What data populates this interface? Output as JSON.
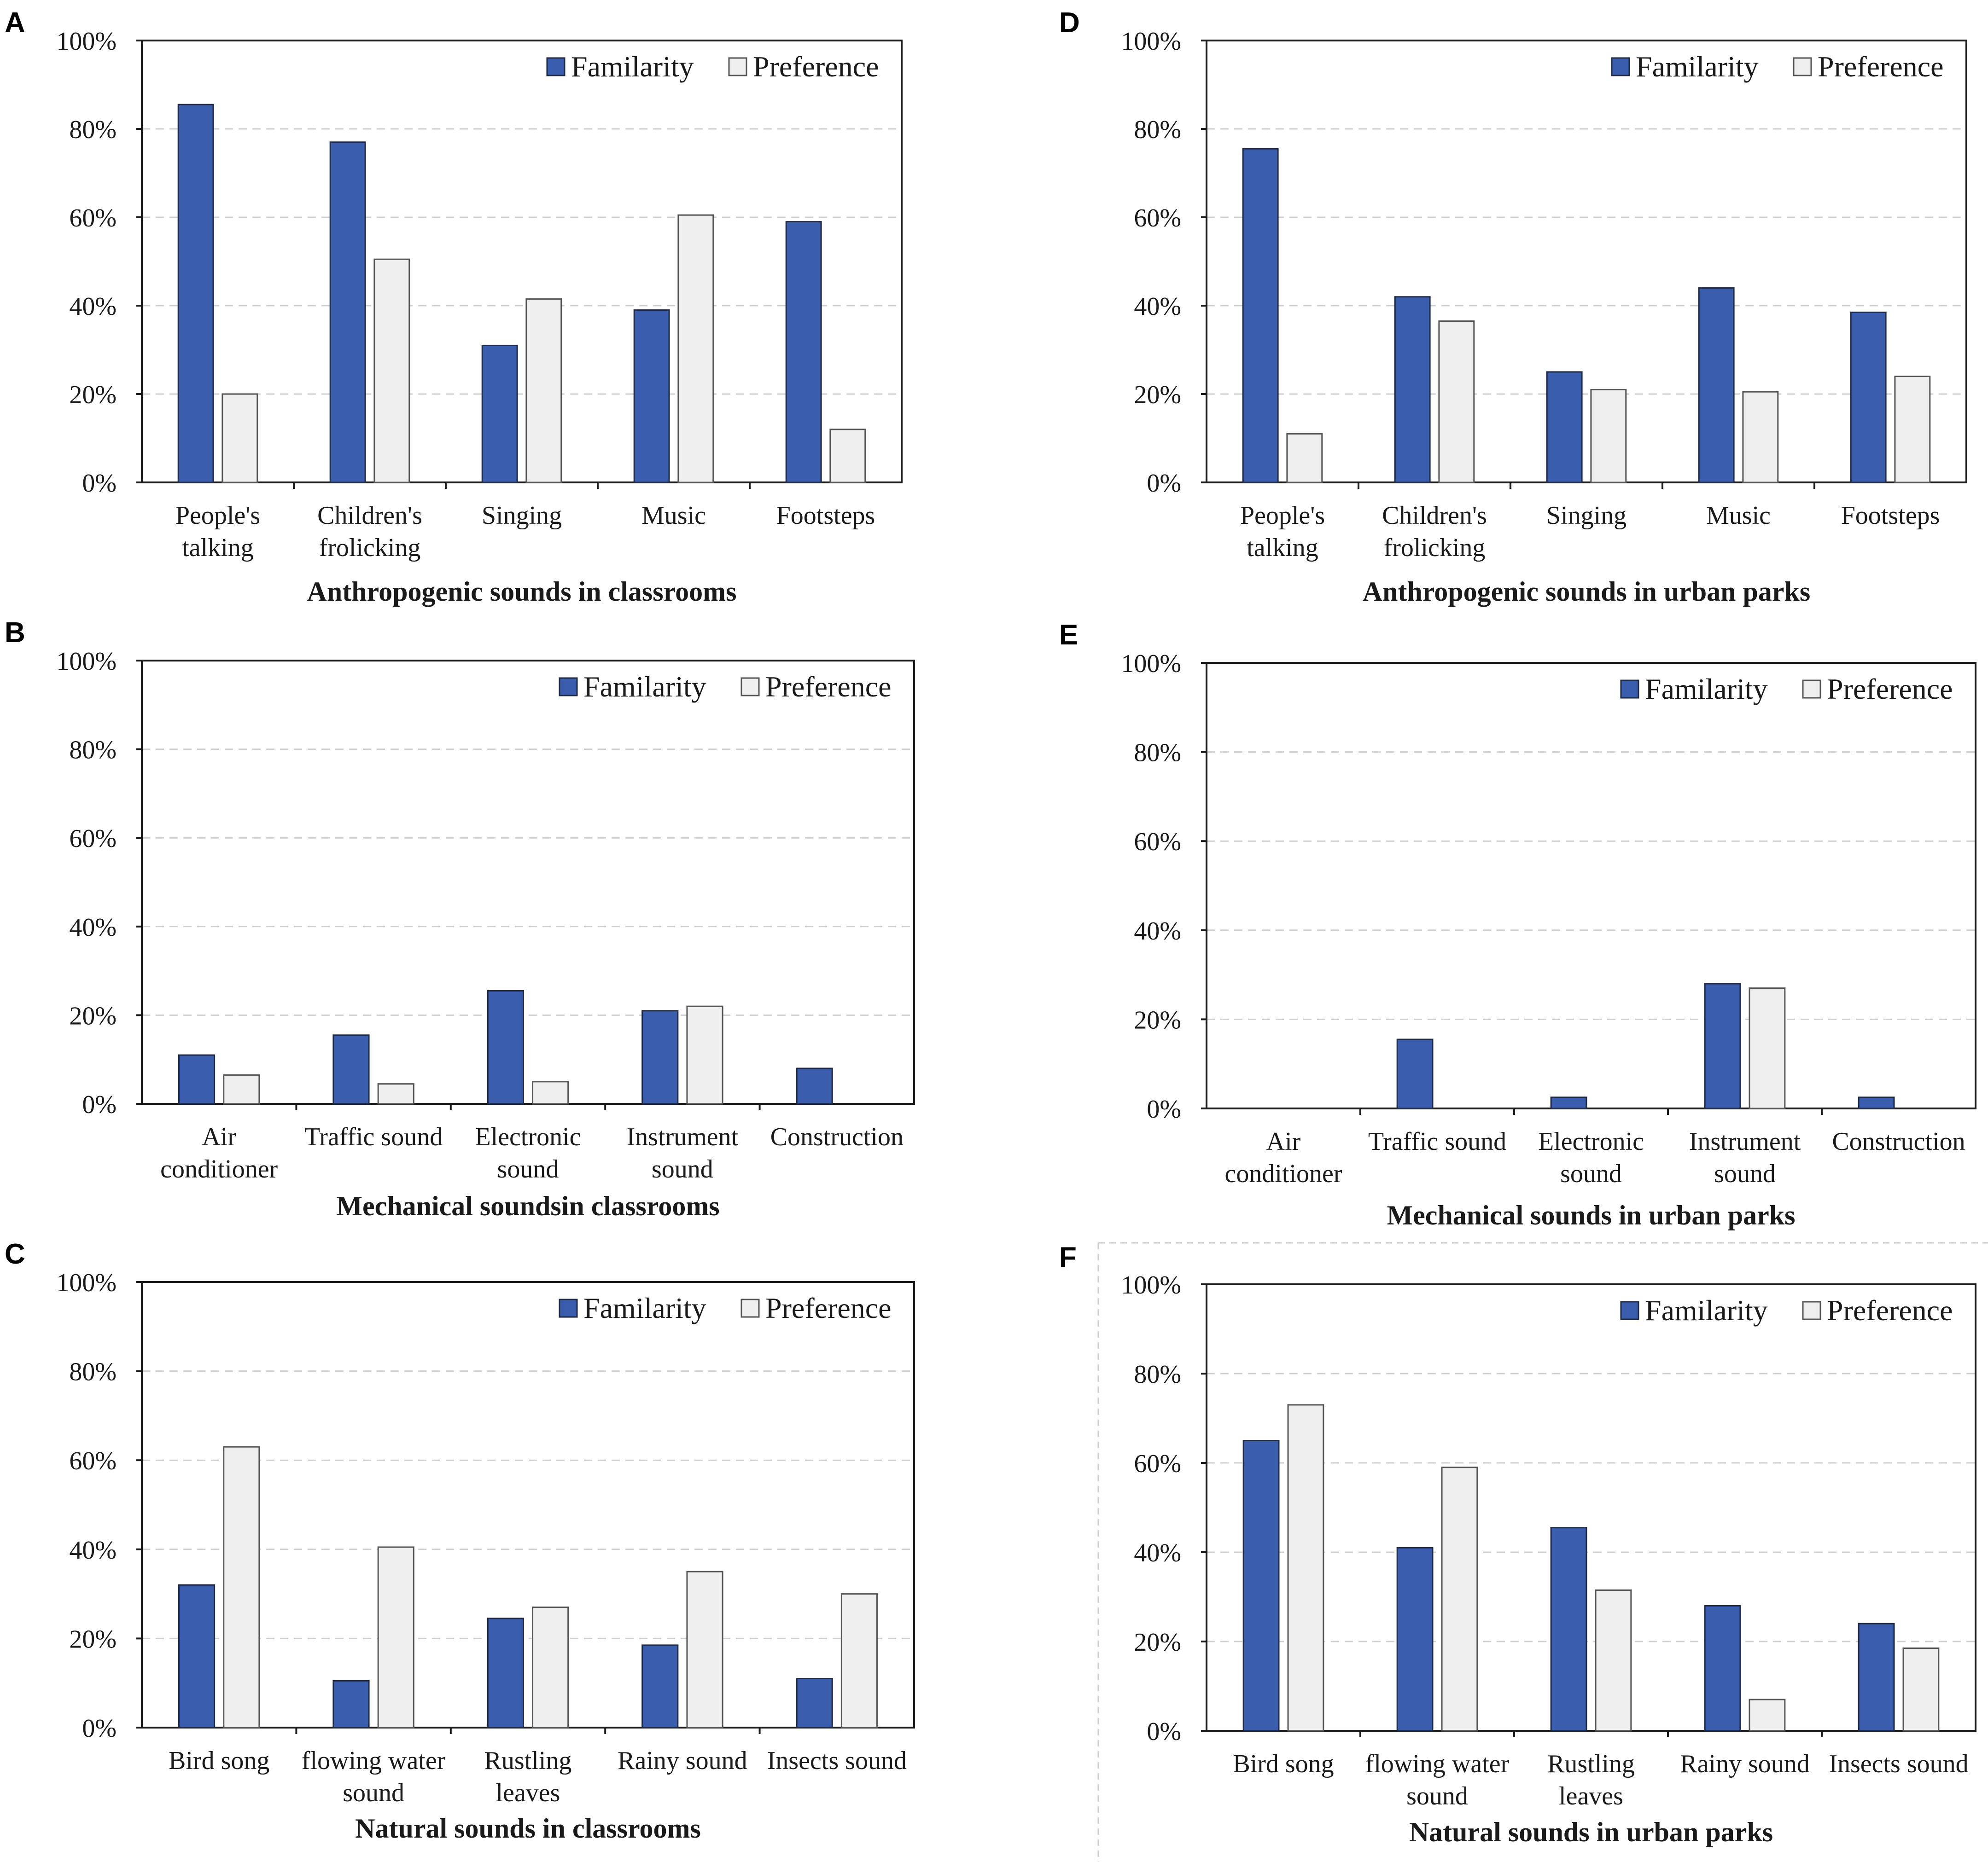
{
  "figure": {
    "legend": {
      "familiarity": "Familarity",
      "preference": "Preference"
    },
    "colors": {
      "familiarity": "#3a5dad",
      "preference": "#efefef",
      "axis": "#1a1a1a",
      "grid": "#cfcfcf"
    },
    "y_ticks": [
      "0%",
      "20%",
      "40%",
      "60%",
      "80%",
      "100%"
    ]
  },
  "chart_data": [
    {
      "panel": "A",
      "type": "bar",
      "title": "Anthropogenic sounds in classrooms",
      "categories": [
        [
          "People's",
          "talking"
        ],
        [
          "Children's",
          "frolicking"
        ],
        [
          "Singing"
        ],
        [
          "Music"
        ],
        [
          "Footsteps"
        ]
      ],
      "series": [
        {
          "name": "Familarity",
          "values": [
            85.5,
            77,
            31,
            39,
            59
          ]
        },
        {
          "name": "Preference",
          "values": [
            20,
            50.5,
            41.5,
            60.5,
            12
          ]
        }
      ],
      "ylim": [
        0,
        100
      ],
      "legend": "top-right"
    },
    {
      "panel": "B",
      "type": "bar",
      "title": "Mechanical soundsin classrooms",
      "categories": [
        [
          "Air",
          "conditioner"
        ],
        [
          "Traffic sound"
        ],
        [
          "Electronic",
          "sound"
        ],
        [
          "Instrument",
          "sound"
        ],
        [
          "Construction"
        ]
      ],
      "series": [
        {
          "name": "Familarity",
          "values": [
            11,
            15.5,
            25.5,
            21,
            8
          ]
        },
        {
          "name": "Preference",
          "values": [
            6.5,
            4.5,
            5,
            22,
            0
          ]
        }
      ],
      "ylim": [
        0,
        100
      ],
      "legend": "top-right"
    },
    {
      "panel": "C",
      "type": "bar",
      "title": "Natural sounds in classrooms",
      "categories": [
        [
          "Bird song"
        ],
        [
          "flowing water",
          "sound"
        ],
        [
          "Rustling",
          "leaves"
        ],
        [
          "Rainy sound"
        ],
        [
          "Insects sound"
        ]
      ],
      "series": [
        {
          "name": "Familarity",
          "values": [
            32,
            10.5,
            24.5,
            18.5,
            11
          ]
        },
        {
          "name": "Preference",
          "values": [
            63,
            40.5,
            27,
            35,
            30
          ]
        }
      ],
      "ylim": [
        0,
        100
      ],
      "legend": "top-right"
    },
    {
      "panel": "D",
      "type": "bar",
      "title": "Anthropogenic sounds  in urban parks",
      "categories": [
        [
          "People's",
          "talking"
        ],
        [
          "Children's",
          "frolicking"
        ],
        [
          "Singing"
        ],
        [
          "Music"
        ],
        [
          "Footsteps"
        ]
      ],
      "series": [
        {
          "name": "Familarity",
          "values": [
            75.5,
            42,
            25,
            44,
            38.5
          ]
        },
        {
          "name": "Preference",
          "values": [
            11,
            36.5,
            21,
            20.5,
            24
          ]
        }
      ],
      "ylim": [
        0,
        100
      ],
      "legend": "top-right"
    },
    {
      "panel": "E",
      "type": "bar",
      "title": "Mechanical sounds in urban parks",
      "categories": [
        [
          "Air",
          "conditioner"
        ],
        [
          "Traffic sound"
        ],
        [
          "Electronic",
          "sound"
        ],
        [
          "Instrument",
          "sound"
        ],
        [
          "Construction"
        ]
      ],
      "series": [
        {
          "name": "Familarity",
          "values": [
            0,
            15.5,
            2.5,
            28,
            2.5
          ]
        },
        {
          "name": "Preference",
          "values": [
            0,
            0,
            0,
            27,
            0
          ]
        }
      ],
      "ylim": [
        0,
        100
      ],
      "legend": "top-right"
    },
    {
      "panel": "F",
      "type": "bar",
      "title": "Natural sounds in urban parks",
      "categories": [
        [
          "Bird song"
        ],
        [
          "flowing water",
          "sound"
        ],
        [
          "Rustling",
          "leaves"
        ],
        [
          "Rainy sound"
        ],
        [
          "Insects sound"
        ]
      ],
      "series": [
        {
          "name": "Familarity",
          "values": [
            65,
            41,
            45.5,
            28,
            24
          ]
        },
        {
          "name": "Preference",
          "values": [
            73,
            59,
            31.5,
            7,
            18.5
          ]
        }
      ],
      "ylim": [
        0,
        100
      ],
      "legend": "top-right"
    }
  ]
}
